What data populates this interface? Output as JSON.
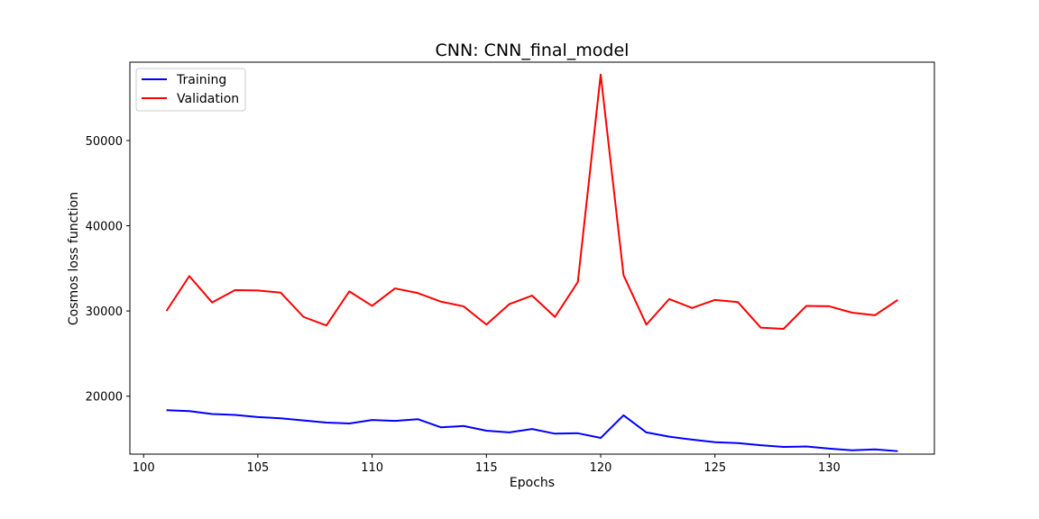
{
  "chart_data": {
    "type": "line",
    "title": "CNN: CNN_final_model",
    "xlabel": "Epochs",
    "ylabel": "Cosmos loss function",
    "xlim": [
      99.4,
      134.6
    ],
    "ylim": [
      13200,
      59200
    ],
    "xticks": [
      100,
      105,
      110,
      115,
      120,
      125,
      130
    ],
    "yticks": [
      20000,
      30000,
      40000,
      50000
    ],
    "grid": false,
    "legend_position": "top-left",
    "x": [
      101,
      102,
      103,
      104,
      105,
      106,
      107,
      108,
      109,
      110,
      111,
      112,
      113,
      114,
      115,
      116,
      117,
      118,
      119,
      120,
      121,
      122,
      123,
      124,
      125,
      126,
      127,
      128,
      129,
      130,
      131,
      132,
      133
    ],
    "series": [
      {
        "name": "Training",
        "color": "#0000ff",
        "values": [
          18350,
          18250,
          17900,
          17800,
          17550,
          17400,
          17150,
          16900,
          16800,
          17200,
          17100,
          17300,
          16350,
          16500,
          15950,
          15750,
          16150,
          15600,
          15650,
          15100,
          17750,
          15750,
          15250,
          14900,
          14600,
          14500,
          14250,
          14050,
          14100,
          13850,
          13650,
          13750,
          13550
        ]
      },
      {
        "name": "Validation",
        "color": "#ff0000",
        "values": [
          30000,
          34100,
          31000,
          32450,
          32400,
          32150,
          29300,
          28300,
          32300,
          30600,
          32650,
          32100,
          31100,
          30550,
          28400,
          30800,
          31800,
          29300,
          33400,
          57750,
          34200,
          28400,
          31400,
          30350,
          31300,
          31050,
          28050,
          27900,
          30600,
          30550,
          29800,
          29500,
          31300
        ]
      }
    ]
  }
}
